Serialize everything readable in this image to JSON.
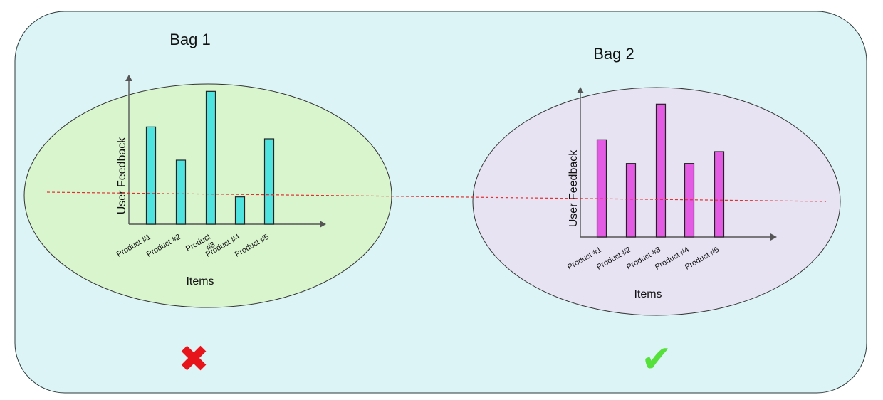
{
  "colors": {
    "panel_fill": "#dcf4f5",
    "panel_stroke": "#2b3a3c",
    "bag1_fill": "#d8f5cd",
    "bag2_fill": "#e8e3f3",
    "bag1_bar": "#4fe3df",
    "bag2_bar": "#e35be3",
    "threshold_line": "#e03030",
    "cross": "#e8141b",
    "check": "#55e03a"
  },
  "bags": [
    {
      "title": "Bag 1",
      "verdict": "✖",
      "verdict_icon": "cross-icon"
    },
    {
      "title": "Bag 2",
      "verdict": "✔",
      "verdict_icon": "check-icon"
    }
  ],
  "chart_data": [
    {
      "type": "bar",
      "title": "Bag 1",
      "xlabel": "Items",
      "ylabel": "User Feedback",
      "categories": [
        "Product #1",
        "Product #2",
        "Product #3",
        "Product #4",
        "Product #5"
      ],
      "category_lines": [
        [
          "Product #1"
        ],
        [
          "Product #2"
        ],
        [
          "Product",
          "#3"
        ],
        [
          "Product #4"
        ],
        [
          "Product #5"
        ]
      ],
      "values": [
        8.2,
        5.4,
        11.2,
        2.3,
        7.2
      ],
      "ylim": [
        0,
        12
      ],
      "grid": false
    },
    {
      "type": "bar",
      "title": "Bag 2",
      "xlabel": "Items",
      "ylabel": "User Feedback",
      "categories": [
        "Product #1",
        "Product #2",
        "Product #3",
        "Product #4",
        "Product #5"
      ],
      "category_lines": [
        [
          "Product #1"
        ],
        [
          "Product #2"
        ],
        [
          "Product #3"
        ],
        [
          "Product #4"
        ],
        [
          "Product #5"
        ]
      ],
      "values": [
        8.2,
        6.2,
        11.2,
        6.2,
        7.2
      ],
      "ylim": [
        0,
        12
      ],
      "grid": false
    }
  ]
}
